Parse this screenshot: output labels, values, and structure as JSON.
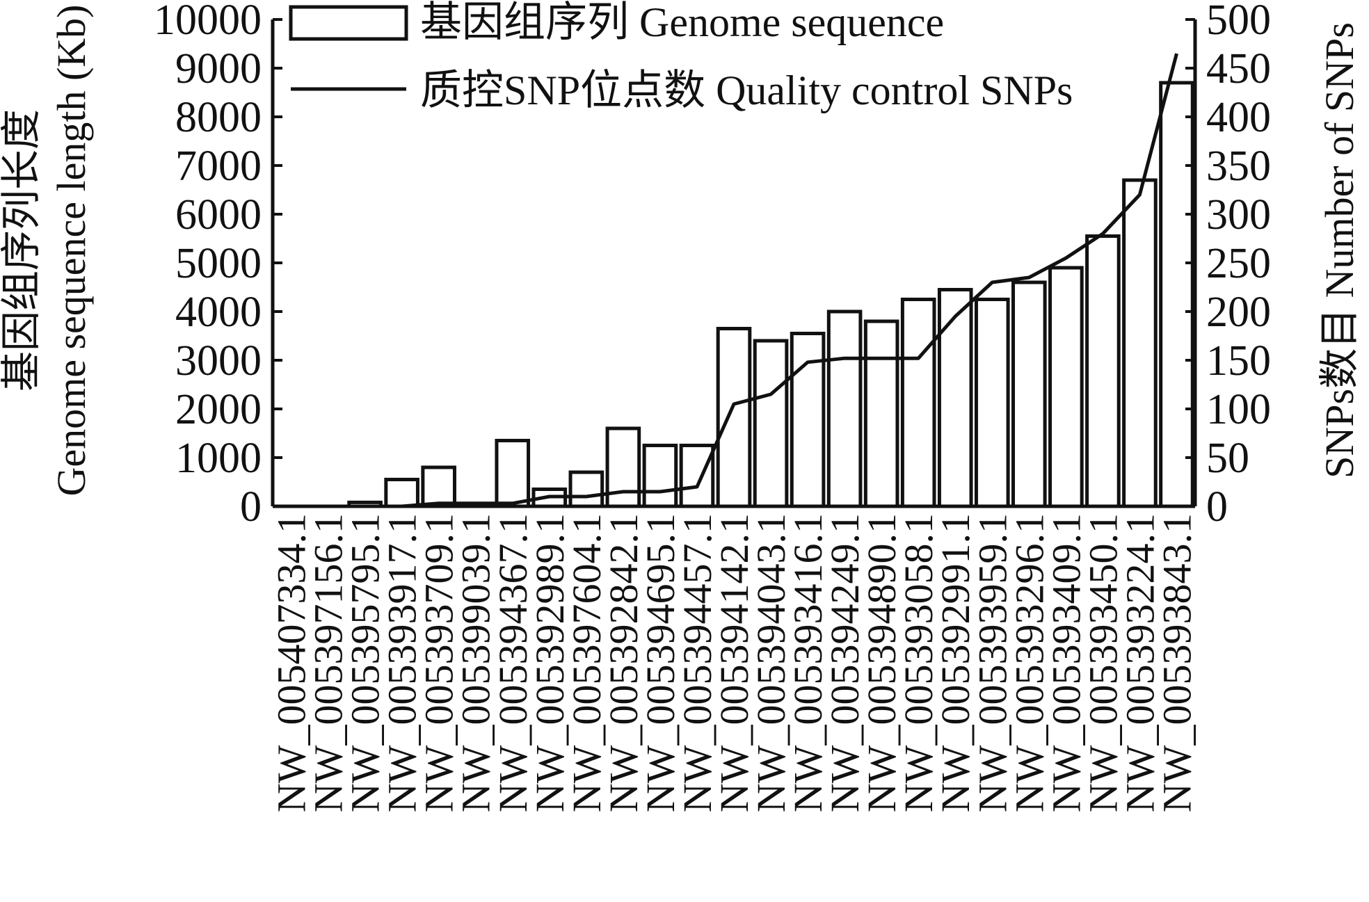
{
  "chart_data": {
    "type": "bar",
    "categories": [
      "NW_005407334.1",
      "NW_005397156.1",
      "NW_005395795.1",
      "NW_005393917.1",
      "NW_005393709.1",
      "NW_005399039.1",
      "NW_005394367.1",
      "NW_005392989.1",
      "NW_005397604.1",
      "NW_005392842.1",
      "NW_005394695.1",
      "NW_005394457.1",
      "NW_005394142.1",
      "NW_005394043.1",
      "NW_005393416.1",
      "NW_005394249.1",
      "NW_005394890.1",
      "NW_005393058.1",
      "NW_005392991.1",
      "NW_005393959.1",
      "NW_005393296.1",
      "NW_005393409.1",
      "NW_005393450.1",
      "NW_005393224.1",
      "NW_005393843.1"
    ],
    "series": [
      {
        "name": "基因组序列 Genome sequence",
        "type": "bar",
        "axis": "left",
        "values": [
          0,
          0,
          80,
          550,
          800,
          0,
          1350,
          350,
          700,
          1600,
          1250,
          1250,
          3650,
          3400,
          3550,
          4000,
          3800,
          4250,
          4450,
          4250,
          4600,
          4900,
          5550,
          6700,
          8700
        ]
      },
      {
        "name": "质控SNP位点数 Quality control SNPs",
        "type": "line",
        "axis": "right",
        "values": [
          0,
          0,
          0,
          0,
          3,
          3,
          3,
          10,
          10,
          15,
          15,
          20,
          105,
          115,
          148,
          152,
          152,
          152,
          195,
          230,
          235,
          255,
          280,
          320,
          465
        ]
      }
    ],
    "ylabel_left_cn": "基因组序列长度",
    "ylabel_left_en": "Genome sequence length (Kb)",
    "ylabel_right": "SNPs数目 Number of SNPs",
    "ylim_left": [
      0,
      10000
    ],
    "ylim_right": [
      0,
      500
    ],
    "yticks_left": [
      "0",
      "1000",
      "2000",
      "3000",
      "4000",
      "5000",
      "6000",
      "7000",
      "8000",
      "9000",
      "10000"
    ],
    "yticks_right": [
      "0",
      "50",
      "100",
      "150",
      "200",
      "250",
      "300",
      "350",
      "400",
      "450",
      "500"
    ],
    "legend_position": "top",
    "grid": false,
    "bar_fill": "#ffffff",
    "stroke_color": "#111111"
  }
}
